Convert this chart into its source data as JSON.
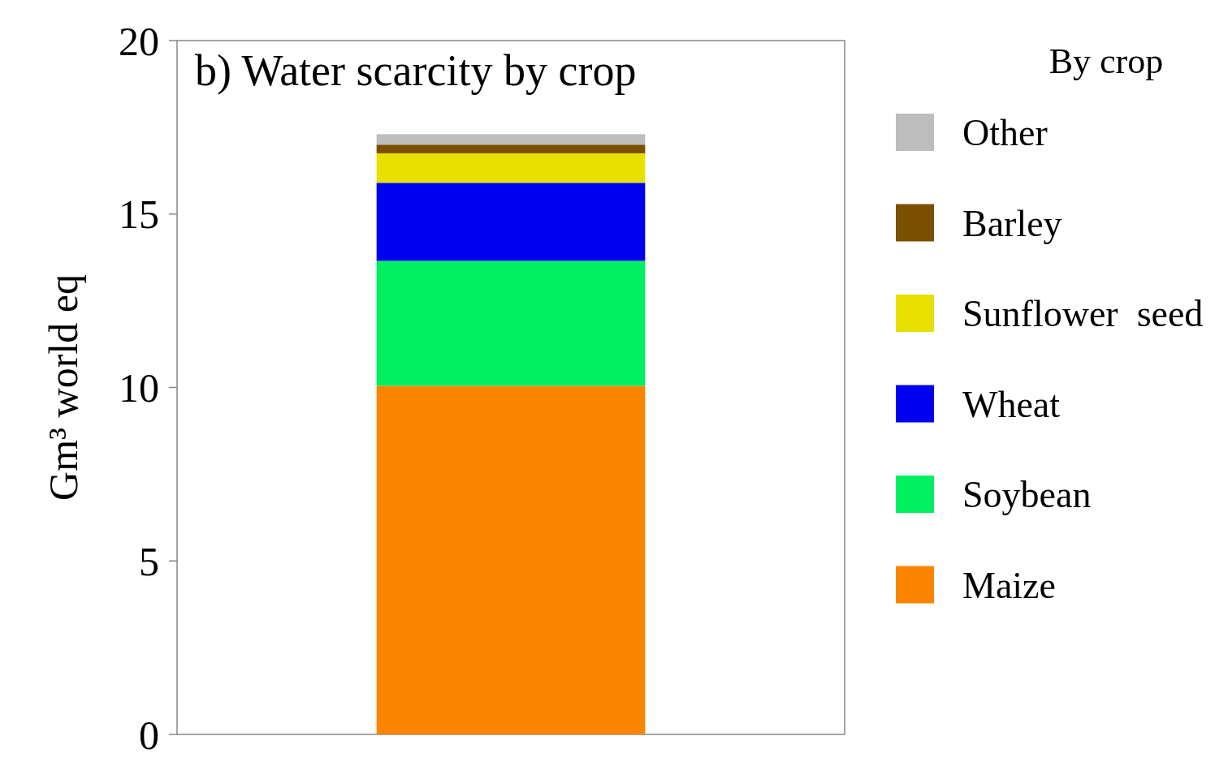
{
  "chart_data": {
    "type": "bar",
    "title": "b) Water scarcity by crop",
    "ylabel": "Gm³ world eq",
    "legend_title": "By crop",
    "categories": [
      null
    ],
    "stacked": true,
    "legend": "right",
    "series": [
      {
        "name": "Maize",
        "color": "#fb8500",
        "values": [
          10.05
        ]
      },
      {
        "name": "Soybean",
        "color": "#00f060",
        "values": [
          3.6
        ]
      },
      {
        "name": "Wheat",
        "color": "#0000f0",
        "values": [
          2.25
        ]
      },
      {
        "name": "Sunflower  seed",
        "color": "#e8e000",
        "values": [
          0.85
        ]
      },
      {
        "name": "Barley",
        "color": "#7a5000",
        "values": [
          0.25
        ]
      },
      {
        "name": "Other",
        "color": "#bdbdbd",
        "values": [
          0.3
        ]
      }
    ],
    "ylim": [
      0,
      20
    ],
    "yticks": [
      0,
      5,
      10,
      15,
      20
    ],
    "grid": false
  }
}
